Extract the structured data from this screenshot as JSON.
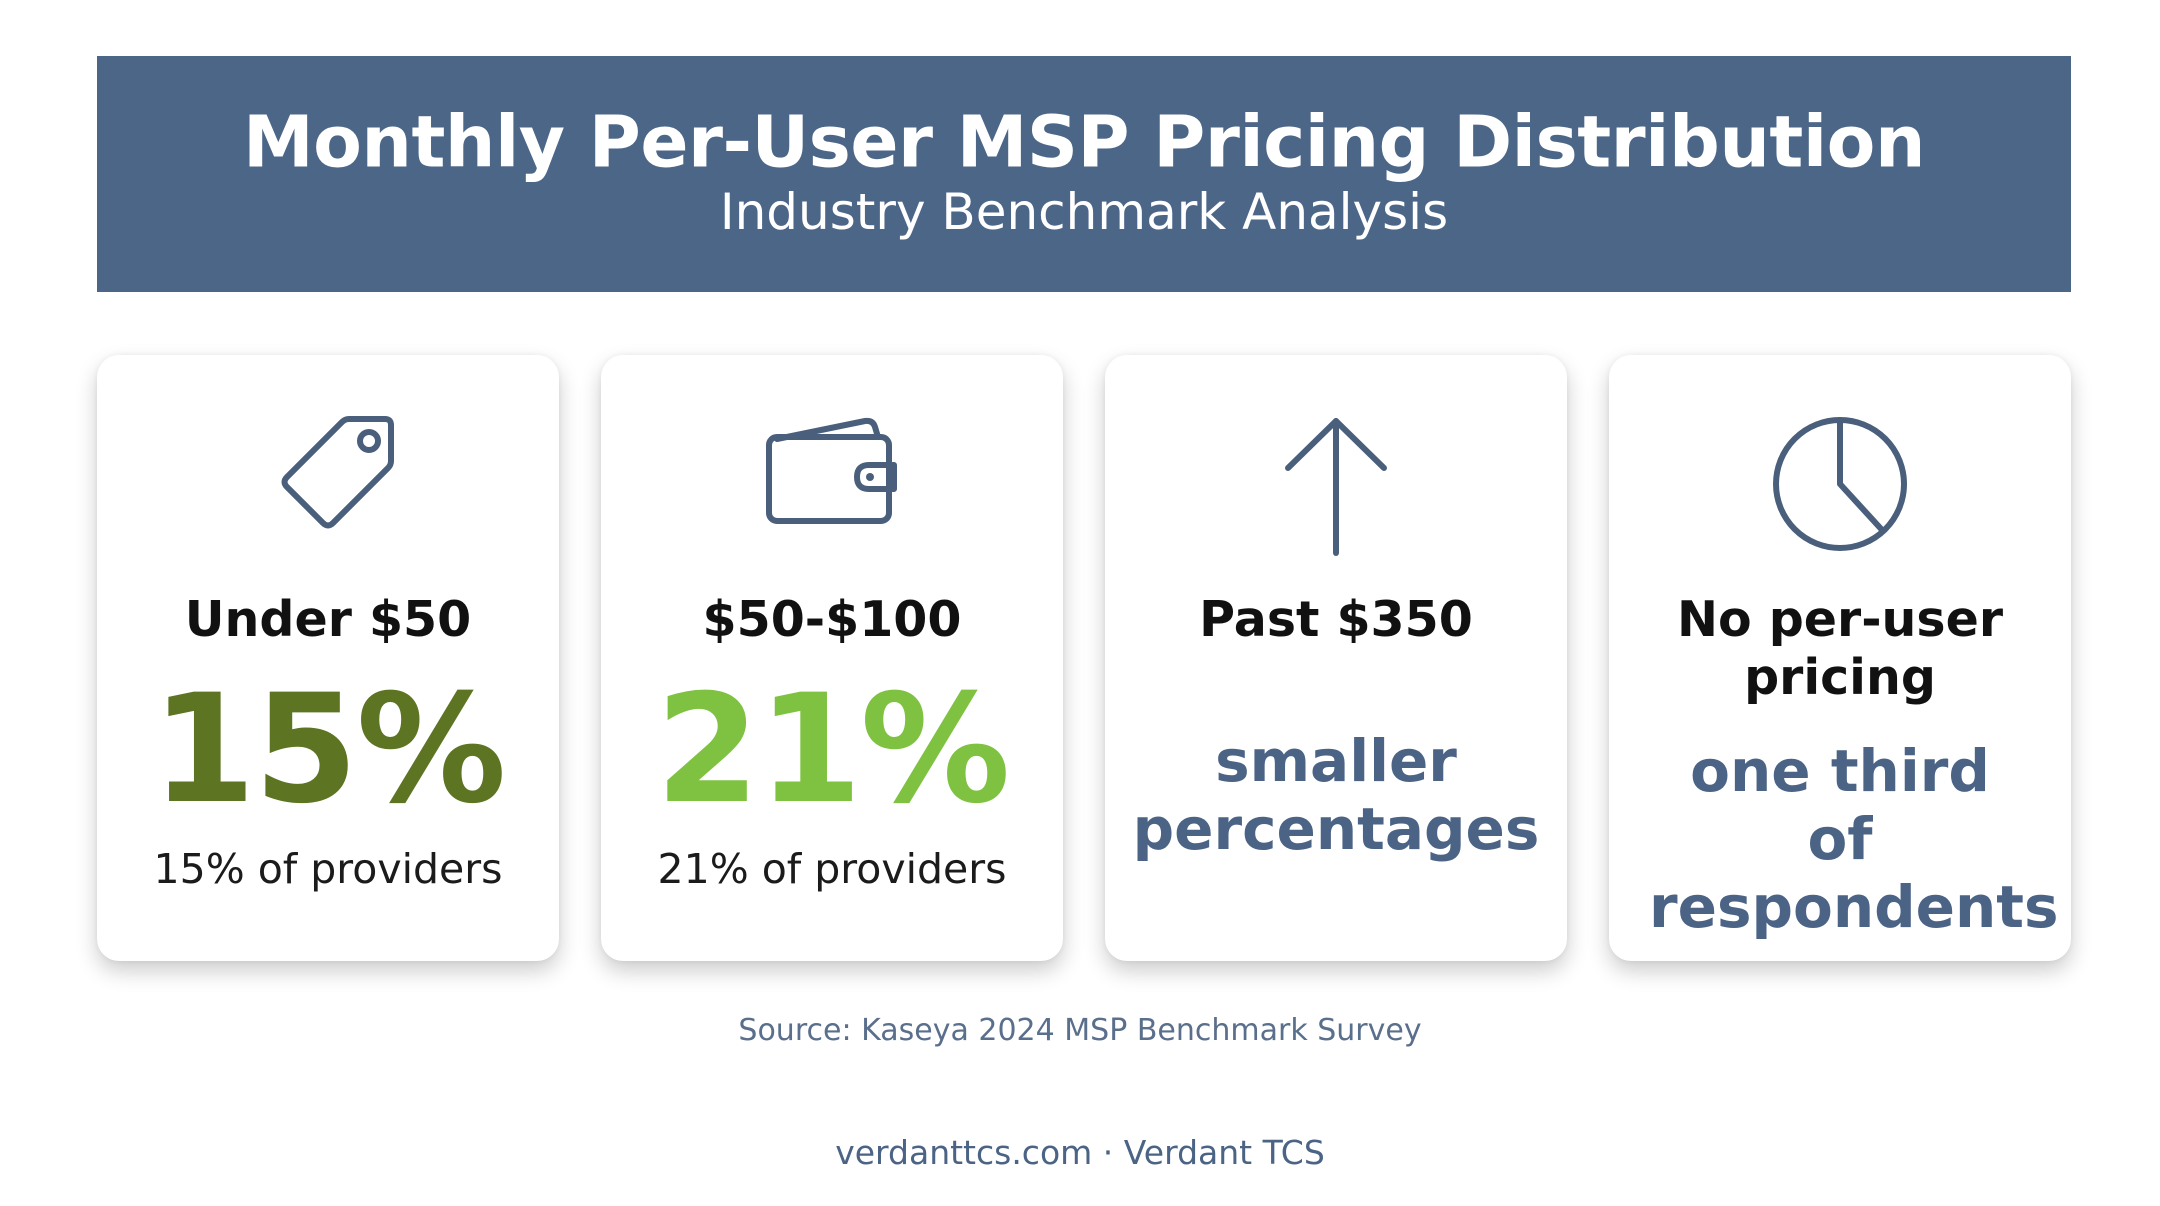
{
  "header": {
    "title": "Monthly Per-User MSP Pricing Distribution",
    "subtitle": "Industry Benchmark Analysis"
  },
  "cards": [
    {
      "icon": "price-tag-icon",
      "label": "Under $50",
      "value": "15%",
      "value_color": "#5d7423",
      "description": "15% of providers"
    },
    {
      "icon": "wallet-icon",
      "label": "$50-$100",
      "value": "21%",
      "value_color": "#7fc241",
      "description": "21% of providers"
    },
    {
      "icon": "arrow-up-icon",
      "label": "Past $350",
      "highlight": "smaller percentages"
    },
    {
      "icon": "pie-chart-icon",
      "label": "No per-user pricing",
      "highlight": "one third of respondents"
    }
  ],
  "source": "Source: Kaseya 2024 MSP Benchmark Survey",
  "footer": "verdanttcs.com · Verdant TCS",
  "colors": {
    "banner": "#4c6688",
    "icon_stroke": "#4a5f7c",
    "highlight_text": "#4b6385"
  }
}
